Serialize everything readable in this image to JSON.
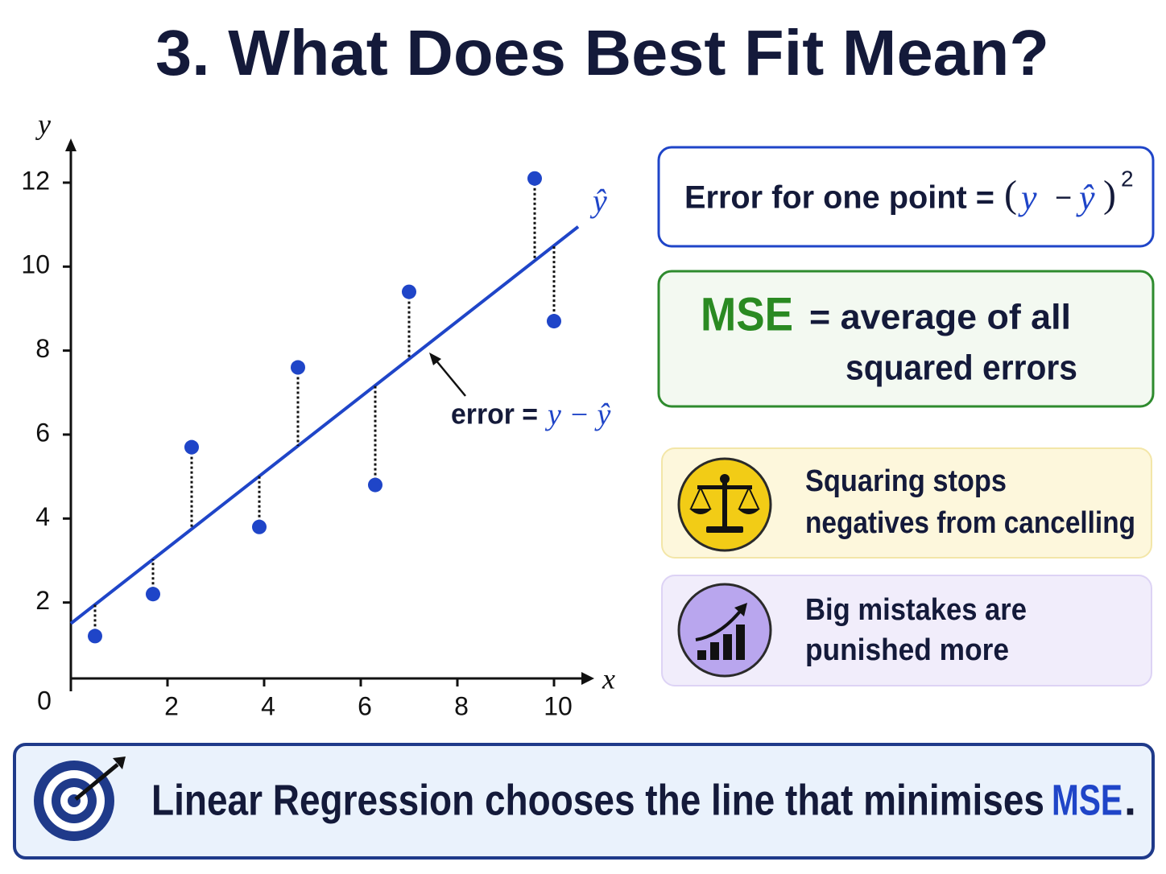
{
  "title": "3. What Does Best Fit Mean?",
  "chart_data": {
    "type": "scatter",
    "x": [
      0.5,
      1.7,
      2.5,
      3.9,
      4.7,
      6.3,
      7.0,
      9.6,
      10.0
    ],
    "values": [
      1.2,
      2.2,
      5.7,
      3.8,
      7.6,
      4.8,
      9.4,
      12.1,
      8.7
    ],
    "color": "#1f45c8",
    "fit_line": {
      "x": [
        0,
        10.5
      ],
      "y": [
        1.5,
        10.95
      ]
    },
    "xlim": [
      0,
      10.7
    ],
    "ylim": [
      0,
      12.9
    ],
    "xticks": [
      0,
      2,
      4,
      6,
      8,
      10
    ],
    "yticks": [
      2,
      4,
      6,
      8,
      10,
      12
    ],
    "x_label": "x",
    "y_label": "y",
    "line_label": "ŷ",
    "error_label": {
      "text": "error =",
      "formula": "y − ŷ"
    }
  },
  "panels": {
    "error_box": {
      "text": "Error for one point =",
      "formula": [
        "(",
        "y",
        "−",
        "ŷ",
        ")",
        "2"
      ]
    },
    "mse_box": {
      "term": "MSE",
      "lines": [
        "= average of all",
        "squared errors"
      ]
    },
    "squaring_note": {
      "lines": [
        "Squaring stops",
        "negatives from cancelling"
      ]
    },
    "mistakes_note": {
      "lines": [
        "Big mistakes are",
        "punished more"
      ]
    }
  },
  "footer": {
    "text": "Linear Regression chooses the line that minimises",
    "highlight": "MSE",
    "end": "."
  }
}
